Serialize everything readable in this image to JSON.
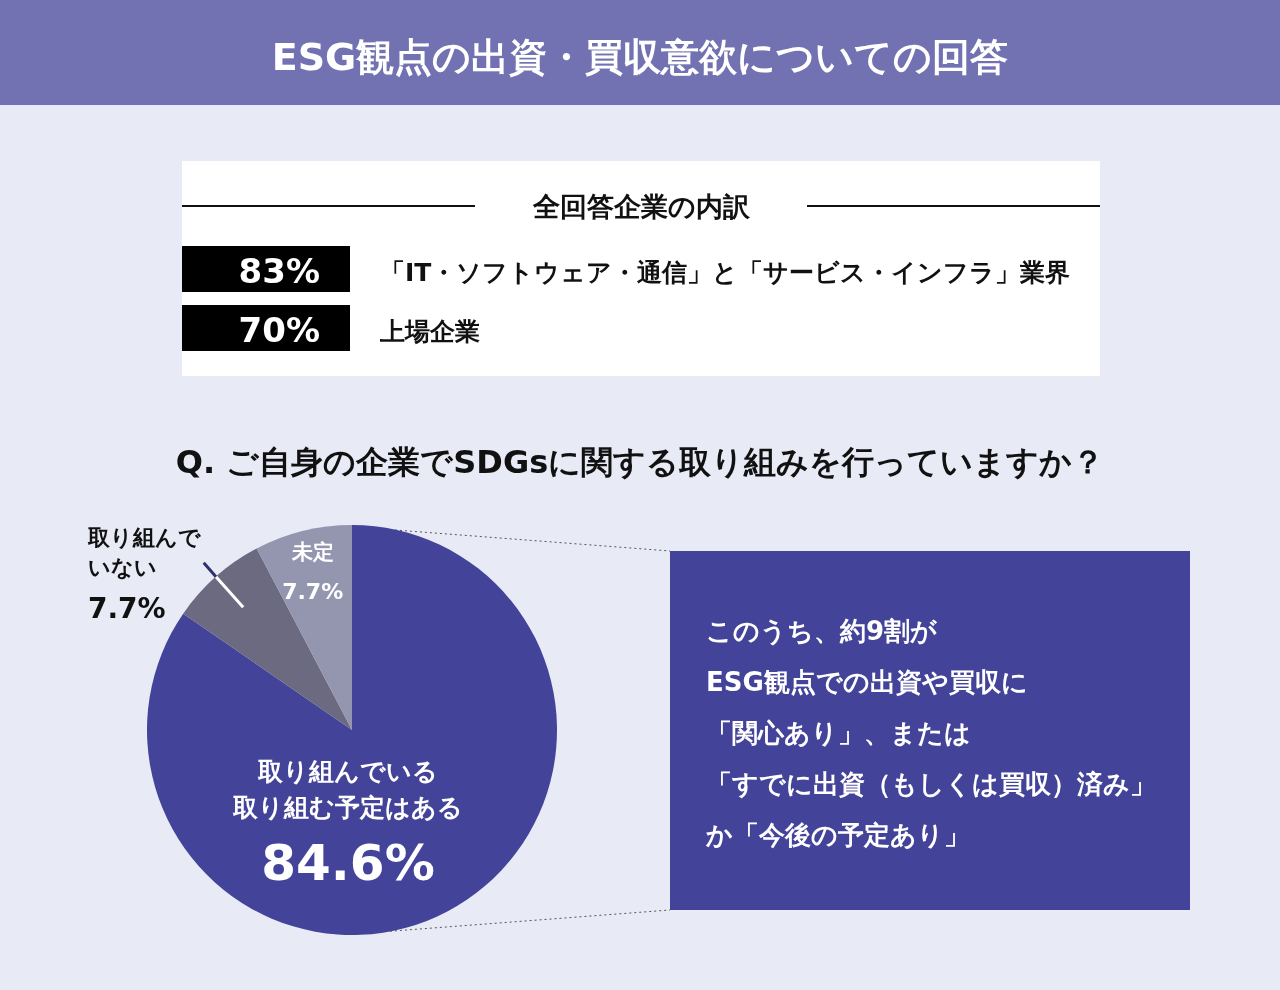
{
  "chart_data": {
    "type": "pie",
    "title": "ESG観点の出資・買収意欲についての回答",
    "subtitle": "Q. ご自身の企業でSDGsに関する取り組みを行っていますか？",
    "categories": [
      "取り組んでいる取り組む予定はある",
      "取り組んでいない",
      "未定"
    ],
    "values": [
      84.6,
      7.7,
      7.7
    ],
    "colors": [
      "#424399",
      "#6b6a80",
      "#9496b0"
    ],
    "value_labels": [
      "84.6%",
      "7.7%",
      "7.7%"
    ],
    "annotations": [
      "全回答企業の内訳",
      "83%",
      "「IT・ソフトウェア・通信」と「サービス・インフラ」業界",
      "70%",
      "上場企業",
      "このうち、約9割が",
      "ESG観点での出資や買収に",
      "「関心あり」、または",
      "「すでに出資（もしくは買収）済み」",
      "か「今後の予定あり」"
    ]
  }
}
